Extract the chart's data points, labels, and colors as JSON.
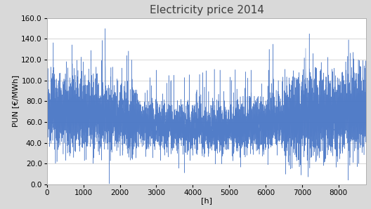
{
  "title": "Electricity price 2014",
  "xlabel": "[h]",
  "ylabel": "PUN [€/MWh]",
  "xlim": [
    0,
    8760
  ],
  "ylim": [
    0.0,
    160.0
  ],
  "yticks": [
    0.0,
    20.0,
    40.0,
    60.0,
    80.0,
    100.0,
    120.0,
    140.0,
    160.0
  ],
  "xticks": [
    0,
    1000,
    2000,
    3000,
    4000,
    5000,
    6000,
    7000,
    8000
  ],
  "line_color": "#4472C4",
  "fill_color": "#a8c4e0",
  "background_color": "#ffffff",
  "outer_background": "#d9d9d9",
  "title_fontsize": 11,
  "axis_fontsize": 8,
  "tick_fontsize": 7.5,
  "seed": 2014,
  "n_hours": 8760
}
